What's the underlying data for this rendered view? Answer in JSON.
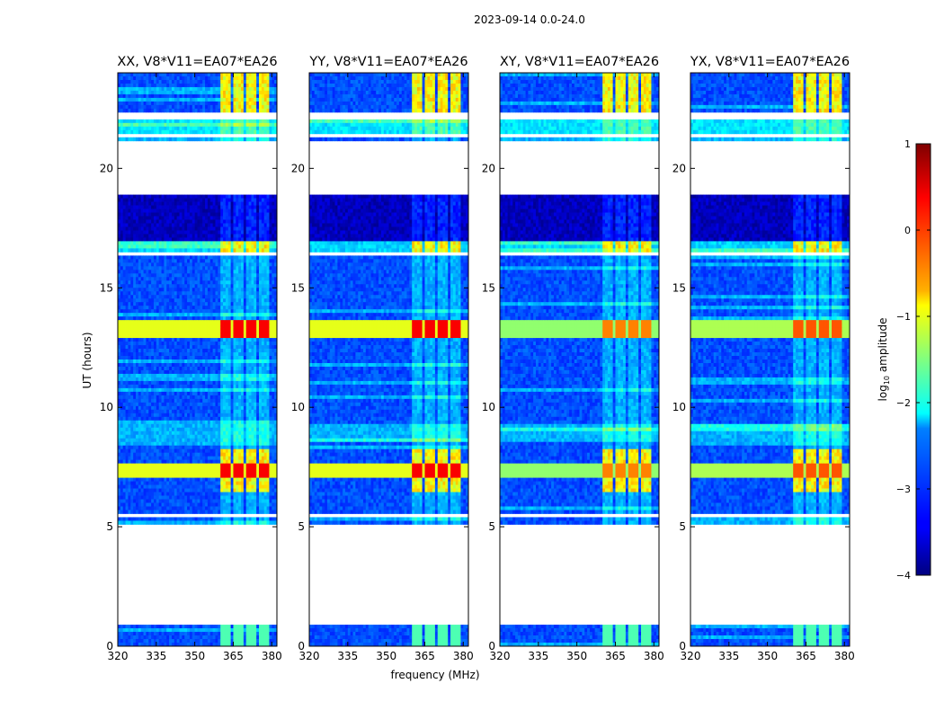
{
  "suptitle": "2023-09-14 0.0-24.0",
  "chart_data": {
    "type": "heatmap",
    "shared": {
      "xlabel": "frequency (MHz)",
      "ylabel": "UT (hours)",
      "x_range": [
        320,
        382
      ],
      "y_range": [
        0,
        24
      ],
      "x_ticks": [
        320,
        335,
        350,
        365,
        380
      ],
      "y_ticks": [
        0,
        5,
        10,
        15,
        20
      ],
      "colorbar_label": "log10 amplitude",
      "colorbar_range": [
        -4,
        1
      ],
      "colorbar_ticks": [
        1,
        0,
        -1,
        -2,
        -3,
        -4
      ],
      "colormap": "jet"
    },
    "panels": [
      {
        "title": "XX, V8*V11=EA07*EA26",
        "id": "xx",
        "peak_strength": 1.0
      },
      {
        "title": "YY, V8*V11=EA07*EA26",
        "id": "yy",
        "peak_strength": 1.0
      },
      {
        "title": "XY, V8*V11=EA07*EA26",
        "id": "xy",
        "peak_strength": 0.85
      },
      {
        "title": "YX, V8*V11=EA07*EA26",
        "id": "yx",
        "peak_strength": 0.9
      }
    ],
    "rfi_channels_mhz": [
      [
        360,
        364
      ],
      [
        365,
        369
      ],
      [
        370,
        374
      ],
      [
        375,
        379
      ]
    ],
    "data_gaps_hours": [
      [
        0.85,
        5.1
      ],
      [
        5.45,
        5.6
      ],
      [
        16.3,
        16.5
      ],
      [
        18.9,
        21.1
      ],
      [
        21.3,
        21.45
      ],
      [
        22.1,
        22.3
      ]
    ],
    "bright_periods_hours": [
      [
        12.9,
        13.6
      ],
      [
        7.0,
        7.7
      ]
    ],
    "colors": {
      "background": "#ffffff",
      "frame": "#000000",
      "gap": "#ffffff"
    }
  }
}
